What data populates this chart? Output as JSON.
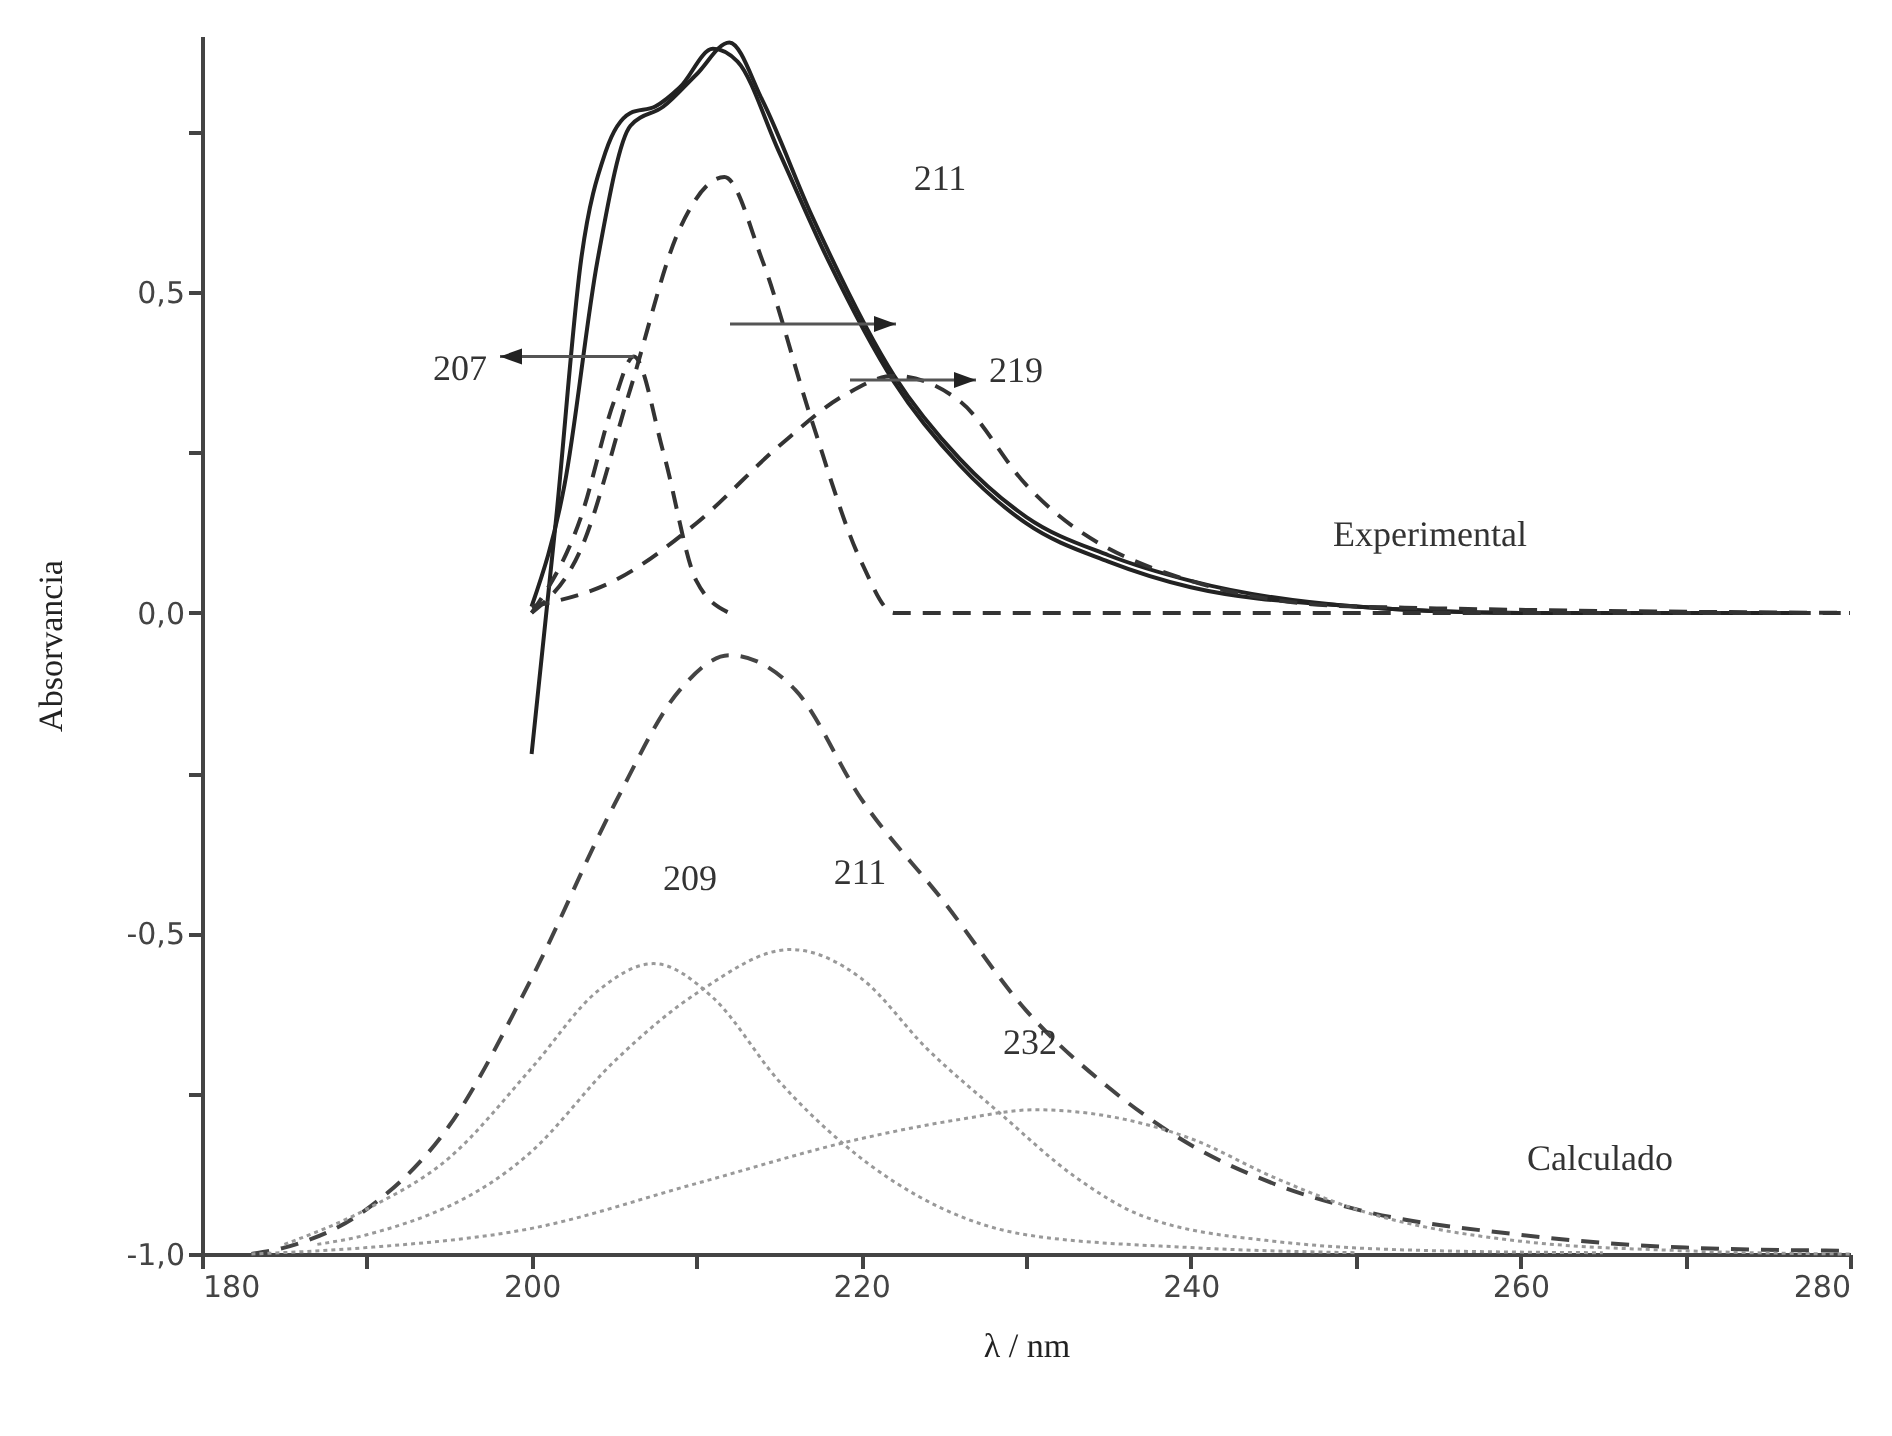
{
  "chart_data": {
    "type": "line",
    "xlabel": "λ / nm",
    "ylabel": "Absorvancia",
    "xlim": [
      180,
      280
    ],
    "ylim": [
      -1.0,
      0.9
    ],
    "xticks": [
      180,
      {
        "value": 190,
        "label": null
      },
      200,
      {
        "value": 210,
        "label": null
      },
      220,
      {
        "value": 230,
        "label": null
      },
      240,
      {
        "value": 250,
        "label": null
      },
      260,
      {
        "value": 270,
        "label": null
      },
      280
    ],
    "yticks": [
      {
        "value": -1.0,
        "label": "-1,0"
      },
      {
        "value": -0.75,
        "label": null
      },
      {
        "value": -0.5,
        "label": "-0,5"
      },
      {
        "value": -0.25,
        "label": null
      },
      {
        "value": 0.0,
        "label": "0,0"
      },
      {
        "value": 0.25,
        "label": null
      },
      {
        "value": 0.5,
        "label": "0,5"
      },
      {
        "value": 0.75,
        "label": null
      }
    ],
    "grid": false,
    "series": [
      {
        "color": "#222222",
        "line_style": "solid",
        "x": [
          200,
          201.5,
          203,
          204.5,
          206,
          207.5,
          209,
          211,
          212.5,
          215,
          218,
          222,
          226,
          230,
          235,
          240,
          250,
          260,
          277
        ],
        "values": [
          -0.22,
          0.15,
          0.55,
          0.72,
          0.78,
          0.79,
          0.82,
          0.88,
          0.86,
          0.72,
          0.55,
          0.36,
          0.23,
          0.14,
          0.08,
          0.04,
          0.01,
          0,
          0
        ]
      },
      {
        "color": "#222222",
        "line_style": "solid",
        "x": [
          200,
          202,
          204,
          206,
          208,
          210,
          212,
          214,
          217,
          222,
          226,
          230,
          235,
          240,
          250,
          260,
          277
        ],
        "values": [
          0.01,
          0.2,
          0.55,
          0.76,
          0.79,
          0.84,
          0.89,
          0.8,
          0.62,
          0.37,
          0.24,
          0.15,
          0.09,
          0.05,
          0.01,
          0,
          0
        ]
      },
      {
        "color": "#333333",
        "line_style": "dashed",
        "x": [
          200,
          203,
          205,
          206.2,
          208,
          210,
          212
        ],
        "values": [
          0,
          0.15,
          0.33,
          0.4,
          0.25,
          0.05,
          0
        ]
      },
      {
        "color": "#333333",
        "line_style": "dashed",
        "x": [
          200,
          203,
          206,
          209,
          211.7,
          214,
          217,
          220,
          222,
          280
        ],
        "values": [
          0,
          0.1,
          0.35,
          0.6,
          0.68,
          0.55,
          0.3,
          0.08,
          0,
          0
        ]
      },
      {
        "color": "#333333",
        "line_style": "dashed",
        "x": [
          200,
          205,
          210,
          215,
          219,
          222,
          226,
          230,
          240,
          250,
          280
        ],
        "values": [
          0.01,
          0.05,
          0.14,
          0.26,
          0.34,
          0.37,
          0.33,
          0.2,
          0.05,
          0.01,
          0
        ]
      },
      {
        "color": "#444444",
        "line_style": "dashed",
        "x": [
          183,
          185,
          190,
          195,
          200,
          205,
          209,
          212,
          216,
          220,
          225,
          230,
          235,
          240,
          245,
          250,
          260,
          270,
          280
        ],
        "values": [
          -1.0,
          -0.99,
          -0.93,
          -0.8,
          -0.57,
          -0.3,
          -0.12,
          -0.066,
          -0.12,
          -0.29,
          -0.45,
          -0.62,
          -0.74,
          -0.83,
          -0.89,
          -0.93,
          -0.97,
          -0.99,
          -0.995
        ]
      },
      {
        "color": "#999999",
        "line_style": "dotted",
        "x": [
          185,
          190,
          195,
          200,
          204,
          207.4,
          211,
          215,
          219,
          225,
          230,
          240,
          250
        ],
        "values": [
          -0.985,
          -0.93,
          -0.85,
          -0.71,
          -0.59,
          -0.547,
          -0.6,
          -0.73,
          -0.83,
          -0.93,
          -0.97,
          -0.99,
          -0.998
        ]
      },
      {
        "color": "#999999",
        "line_style": "dotted",
        "x": [
          187,
          190,
          200,
          205,
          210.2,
          215.7,
          220,
          224,
          228.4,
          233,
          237,
          245,
          255,
          265
        ],
        "values": [
          -0.985,
          -0.97,
          -0.84,
          -0.7,
          -0.59,
          -0.525,
          -0.57,
          -0.68,
          -0.78,
          -0.88,
          -0.94,
          -0.98,
          -0.995,
          -0.998
        ]
      },
      {
        "color": "#999999",
        "line_style": "dotted",
        "x": [
          183,
          190,
          200,
          210,
          220,
          226,
          230.5,
          236,
          240,
          245,
          250,
          260,
          270,
          280
        ],
        "values": [
          -1.0,
          -0.99,
          -0.96,
          -0.89,
          -0.82,
          -0.79,
          -0.775,
          -0.79,
          -0.82,
          -0.88,
          -0.93,
          -0.98,
          -0.995,
          -1.0
        ]
      }
    ],
    "annotations": [
      {
        "text": "207",
        "x": 206.2,
        "y": 0.4
      },
      "211",
      "219",
      "Experimental",
      "209",
      "211",
      "232",
      "Calculado"
    ]
  }
}
